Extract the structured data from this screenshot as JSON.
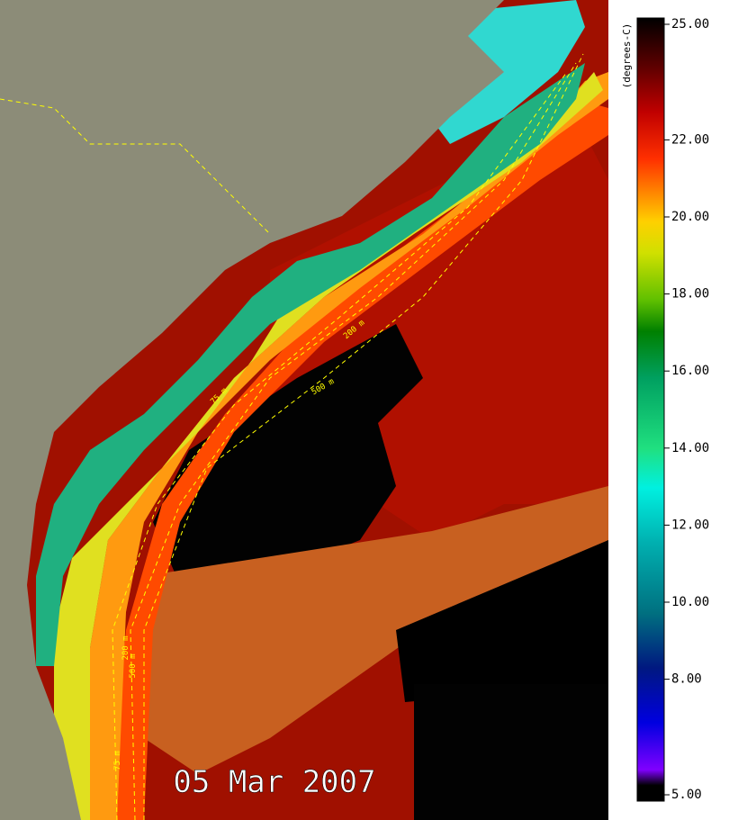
{
  "map": {
    "date_label": "05 Mar 2007",
    "contour_labels": [
      "200 m",
      "500 m",
      "75 m",
      "200 m",
      "500 m",
      "75 m"
    ],
    "colorbar": {
      "label": "(degrees-C)",
      "range": [
        5,
        25
      ],
      "ticks": [
        {
          "value": 25,
          "label": "25.00"
        },
        {
          "value": 22,
          "label": "22.00"
        },
        {
          "value": 20,
          "label": "20.00"
        },
        {
          "value": 18,
          "label": "18.00"
        },
        {
          "value": 16,
          "label": "16.00"
        },
        {
          "value": 14,
          "label": "14.00"
        },
        {
          "value": 12,
          "label": "12.00"
        },
        {
          "value": 10,
          "label": "10.00"
        },
        {
          "value": 8,
          "label": "8.00"
        },
        {
          "value": 5,
          "label": "5.00"
        }
      ]
    }
  }
}
